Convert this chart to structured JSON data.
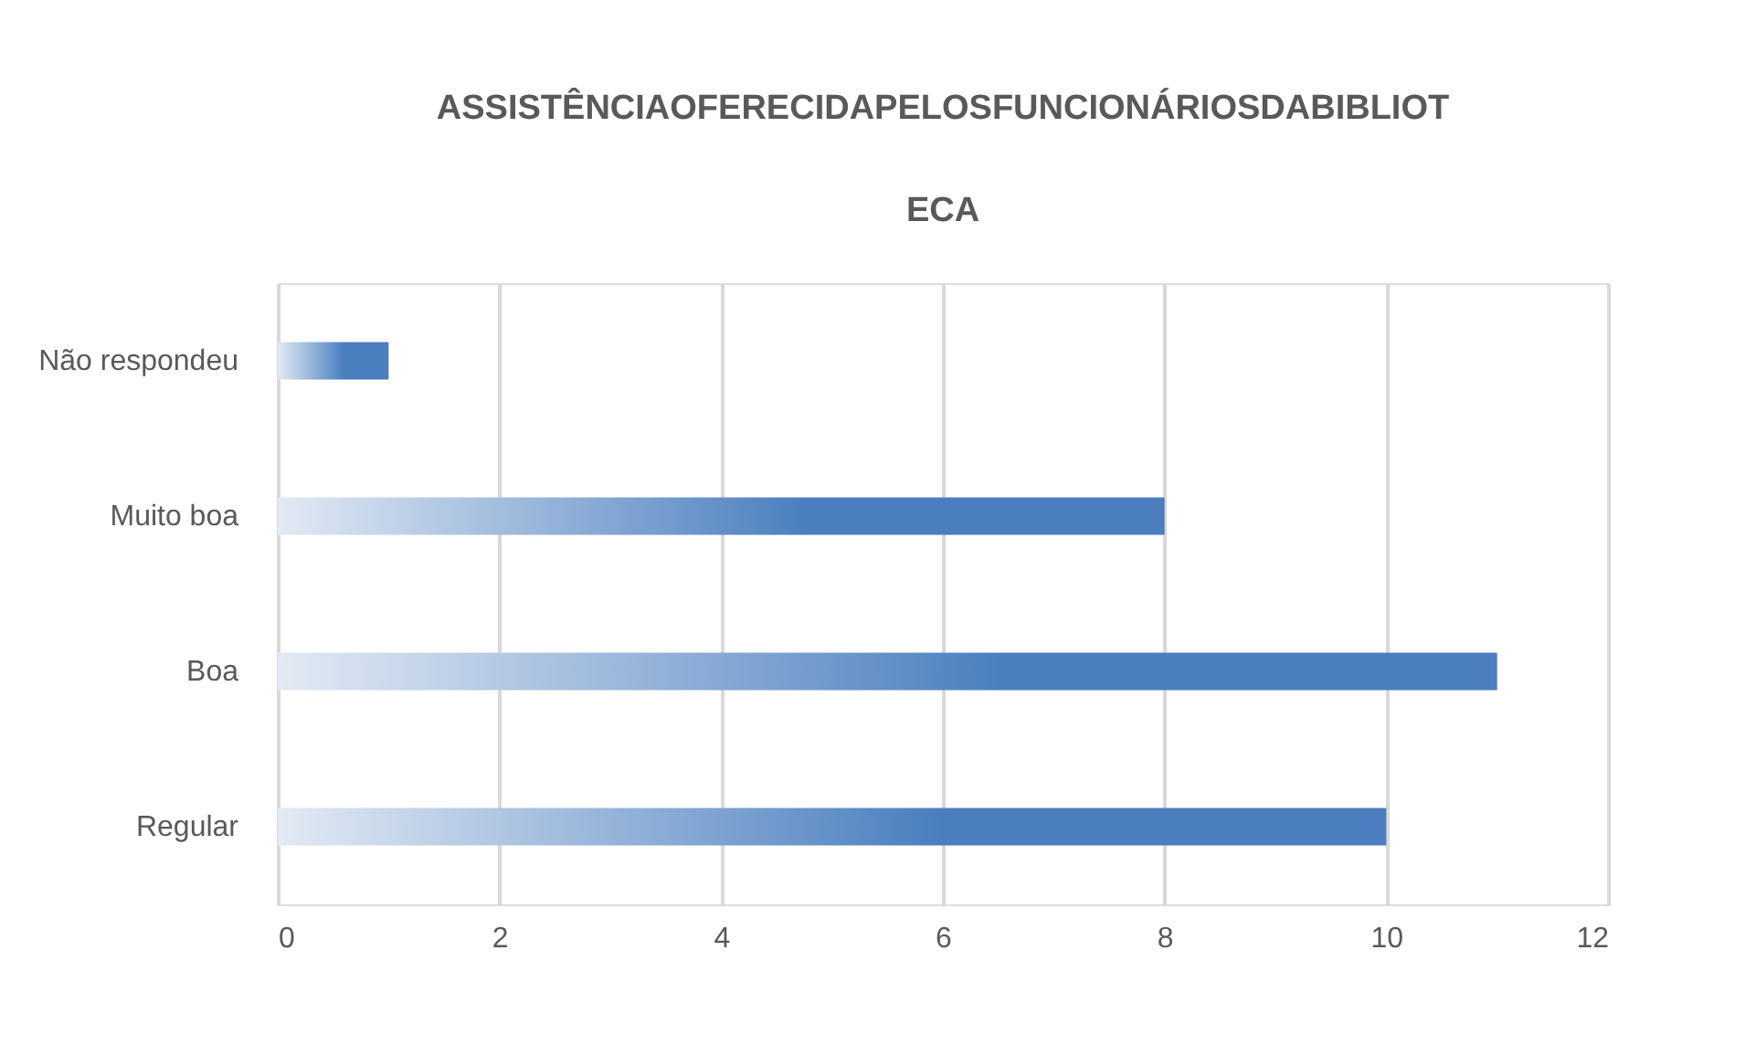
{
  "chart_data": {
    "type": "bar",
    "orientation": "horizontal",
    "title": "ASSISTÊNCIAOFERECIDAPELOSFUNCIONÁRIOSDABIBLIOTECA",
    "categories": [
      "Não respondeu",
      "Muito boa",
      "Boa",
      "Regular"
    ],
    "values": [
      1,
      8,
      11,
      10
    ],
    "color": "#4a7ebf",
    "xlim": [
      0,
      12
    ],
    "xticks": [
      0,
      2,
      4,
      6,
      8,
      10,
      12
    ],
    "grid": "x"
  }
}
